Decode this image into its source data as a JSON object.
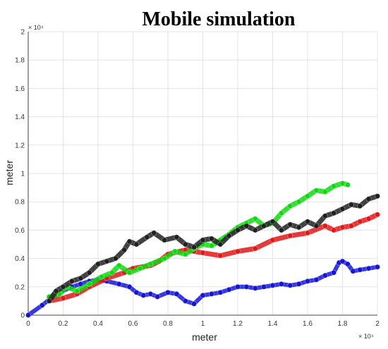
{
  "chart_data": {
    "type": "line",
    "title": "Mobile simulation",
    "xlabel": "meter",
    "ylabel": "meter",
    "x_exponent": "× 10⁴",
    "y_exponent": "× 10⁴",
    "xlim": [
      0,
      2
    ],
    "ylim": [
      0,
      2
    ],
    "xticks": [
      "0",
      "0.2",
      "0.4",
      "0.6",
      "0.8",
      "1",
      "1.2",
      "1.4",
      "1.6",
      "1.8",
      "2"
    ],
    "yticks": [
      "0",
      "0.2",
      "0.4",
      "0.6",
      "0.8",
      "1",
      "1.2",
      "1.4",
      "1.6",
      "1.8",
      "2"
    ],
    "grid": true,
    "series": [
      {
        "color": "#1515d6",
        "x": [
          0,
          0.08,
          0.13,
          0.18,
          0.25,
          0.3,
          0.35,
          0.4,
          0.45,
          0.52,
          0.58,
          0.62,
          0.66,
          0.7,
          0.74,
          0.8,
          0.85,
          0.9,
          0.95,
          1.0,
          1.05,
          1.1,
          1.15,
          1.2,
          1.25,
          1.3,
          1.35,
          1.4,
          1.45,
          1.5,
          1.55,
          1.6,
          1.65,
          1.7,
          1.75,
          1.78,
          1.8,
          1.83,
          1.86,
          1.9,
          1.95,
          2.0
        ],
        "y": [
          0,
          0.07,
          0.12,
          0.16,
          0.2,
          0.22,
          0.24,
          0.25,
          0.24,
          0.22,
          0.2,
          0.16,
          0.14,
          0.15,
          0.13,
          0.16,
          0.15,
          0.1,
          0.08,
          0.14,
          0.15,
          0.16,
          0.18,
          0.2,
          0.2,
          0.19,
          0.2,
          0.21,
          0.22,
          0.21,
          0.22,
          0.24,
          0.25,
          0.28,
          0.3,
          0.37,
          0.38,
          0.36,
          0.31,
          0.32,
          0.33,
          0.34
        ]
      },
      {
        "color": "#e01818",
        "x": [
          0.12,
          0.2,
          0.28,
          0.35,
          0.45,
          0.55,
          0.6,
          0.7,
          0.75,
          0.8,
          0.9,
          0.95,
          1.0,
          1.1,
          1.2,
          1.3,
          1.4,
          1.5,
          1.6,
          1.7,
          1.75,
          1.8,
          1.85,
          1.9,
          1.95,
          2.0
        ],
        "y": [
          0.1,
          0.12,
          0.15,
          0.2,
          0.26,
          0.3,
          0.33,
          0.35,
          0.38,
          0.43,
          0.46,
          0.45,
          0.44,
          0.42,
          0.45,
          0.47,
          0.53,
          0.56,
          0.58,
          0.63,
          0.6,
          0.62,
          0.63,
          0.66,
          0.68,
          0.71
        ]
      },
      {
        "color": "#12d812",
        "x": [
          0.12,
          0.18,
          0.22,
          0.28,
          0.35,
          0.42,
          0.48,
          0.52,
          0.58,
          0.64,
          0.7,
          0.78,
          0.84,
          0.9,
          0.95,
          1.0,
          1.05,
          1.1,
          1.15,
          1.2,
          1.25,
          1.3,
          1.35,
          1.4,
          1.45,
          1.5,
          1.55,
          1.6,
          1.65,
          1.7,
          1.75,
          1.8,
          1.83
        ],
        "y": [
          0.13,
          0.15,
          0.2,
          0.17,
          0.22,
          0.27,
          0.3,
          0.35,
          0.3,
          0.33,
          0.36,
          0.4,
          0.45,
          0.43,
          0.47,
          0.5,
          0.49,
          0.53,
          0.57,
          0.62,
          0.65,
          0.68,
          0.63,
          0.65,
          0.72,
          0.77,
          0.8,
          0.84,
          0.88,
          0.87,
          0.91,
          0.93,
          0.92
        ]
      },
      {
        "color": "#202020",
        "x": [
          0.12,
          0.16,
          0.2,
          0.25,
          0.3,
          0.35,
          0.4,
          0.45,
          0.5,
          0.55,
          0.58,
          0.62,
          0.68,
          0.72,
          0.78,
          0.85,
          0.9,
          0.95,
          1.0,
          1.05,
          1.1,
          1.15,
          1.2,
          1.25,
          1.3,
          1.35,
          1.4,
          1.45,
          1.5,
          1.55,
          1.6,
          1.65,
          1.7,
          1.75,
          1.8,
          1.85,
          1.9,
          1.95,
          2.0
        ],
        "y": [
          0.1,
          0.17,
          0.2,
          0.24,
          0.26,
          0.3,
          0.36,
          0.38,
          0.4,
          0.46,
          0.52,
          0.5,
          0.55,
          0.58,
          0.53,
          0.55,
          0.5,
          0.48,
          0.53,
          0.54,
          0.5,
          0.56,
          0.6,
          0.63,
          0.6,
          0.63,
          0.66,
          0.6,
          0.64,
          0.62,
          0.66,
          0.63,
          0.7,
          0.72,
          0.75,
          0.78,
          0.77,
          0.82,
          0.84
        ]
      }
    ]
  }
}
